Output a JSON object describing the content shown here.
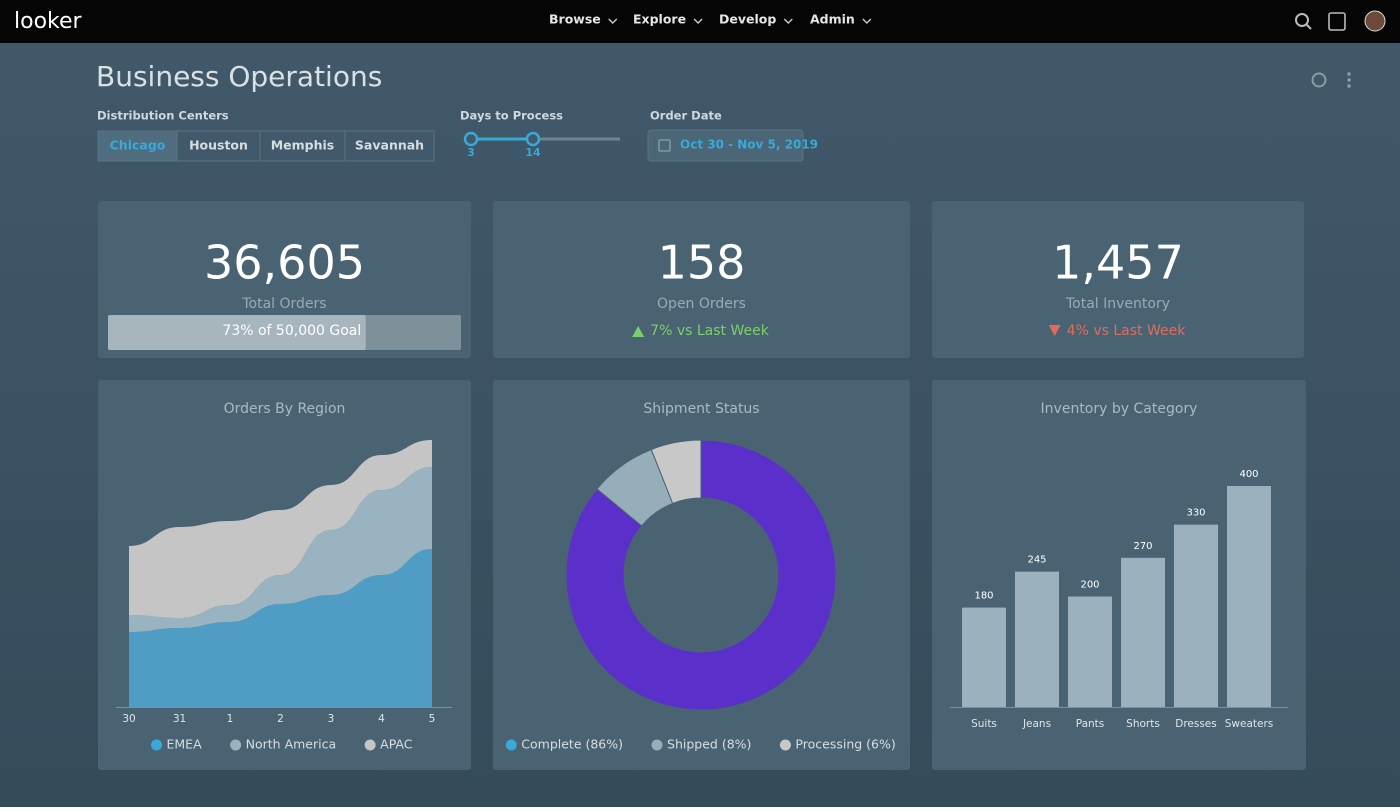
{
  "nav": {
    "logo": "looker",
    "items": [
      "Browse",
      "Explore",
      "Develop",
      "Admin"
    ]
  },
  "header": {
    "title": "Business Operations"
  },
  "filters": {
    "distribution_centers": {
      "label": "Distribution Centers",
      "options": [
        "Chicago",
        "Houston",
        "Memphis",
        "Savannah"
      ]
    },
    "days_to_process": {
      "label": "Days to Process",
      "min": "3",
      "max": "14"
    },
    "order_date": {
      "label": "Order Date",
      "value": "Oct 30 - Nov 5, 2019"
    }
  },
  "kpis": [
    {
      "value": "36,605",
      "label": "Total Orders",
      "progress": {
        "value": 73,
        "label": "73% of 50,000 Goal"
      }
    },
    {
      "value": "158",
      "label": "Open Orders",
      "change": "7% vs Last Week",
      "direction": "up"
    },
    {
      "value": "1,457",
      "label": "Total Inventory",
      "change": "4% vs Last Week",
      "direction": "down"
    }
  ],
  "chart_data": [
    {
      "type": "area",
      "title": "Orders By Region",
      "categories": [
        "30",
        "31",
        "1",
        "2",
        "3",
        "4",
        "5"
      ],
      "ylim": [
        0,
        270
      ],
      "stacked": true,
      "series": [
        {
          "name": "EMEA",
          "color": "#4f9dc4",
          "legend_color": "#3aa9d8",
          "values": [
            75,
            79,
            85,
            103,
            112,
            132,
            158
          ]
        },
        {
          "name": "North America",
          "color": "#9ab3c0",
          "legend_color": "#9ab3c0",
          "values": [
            17,
            10,
            17,
            29,
            65,
            85,
            82
          ]
        },
        {
          "name": "APAC",
          "color": "#c5c5c5",
          "legend_color": "#c5c5c5",
          "values": [
            69,
            91,
            84,
            65,
            45,
            35,
            27
          ]
        }
      ]
    },
    {
      "type": "pie",
      "title": "Shipment Status",
      "donut": true,
      "series": [
        {
          "name": "Complete (86%)",
          "color": "#5b2fc9",
          "legend_color": "#3aa9d8",
          "value": 86
        },
        {
          "name": "Shipped (8%)",
          "color": "#95aeb9",
          "legend_color": "#95aeb9",
          "value": 8
        },
        {
          "name": "Processing (6%)",
          "color": "#c8c8c8",
          "legend_color": "#c8c8c8",
          "value": 6
        }
      ]
    },
    {
      "type": "bar",
      "title": "Inventory by Category",
      "categories": [
        "Suits",
        "Jeans",
        "Pants",
        "Shorts",
        "Dresses",
        "Sweaters"
      ],
      "values": [
        180,
        245,
        200,
        270,
        330,
        400
      ],
      "color": "#9bb1bd",
      "ylim": [
        0,
        400
      ]
    }
  ]
}
